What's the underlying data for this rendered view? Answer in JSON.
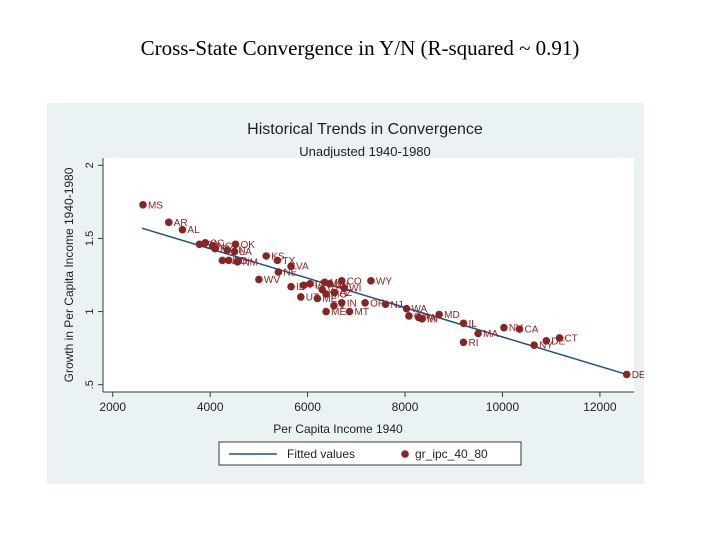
{
  "slide": {
    "title": "Cross-State Convergence in Y/N (R-squared ~ 0.91)"
  },
  "chart_data": {
    "type": "scatter",
    "title": "Historical Trends in Convergence",
    "subtitle": "Unadjusted 1940-1980",
    "xlabel": "Per Capita Income 1940",
    "ylabel": "Growth in Per Capita Income 1940-1980",
    "xlim": [
      1800,
      12700
    ],
    "ylim": [
      0.45,
      2.05
    ],
    "xticks": [
      2000,
      4000,
      6000,
      8000,
      10000,
      12000
    ],
    "yticks": [
      0.5,
      1,
      1.5,
      2
    ],
    "ytick_labels": [
      ".5",
      "1",
      "1.5",
      "2"
    ],
    "grid": false,
    "legend_position": "bottom",
    "legend": [
      {
        "label": "Fitted values",
        "kind": "line"
      },
      {
        "label": "gr_ipc_40_80",
        "kind": "marker"
      }
    ],
    "colors": {
      "marker": "#8b2323",
      "fit_line": "#1a4f8b",
      "plot_background": "#ffffff",
      "figure_background": "#eaf2f3",
      "title": "#1f1f1f"
    },
    "fitted_line": {
      "x": [
        2600,
        12550
      ],
      "y": [
        1.57,
        0.57
      ]
    },
    "points": [
      {
        "label": "MS",
        "x": 2620,
        "y": 1.73
      },
      {
        "label": "AR",
        "x": 3150,
        "y": 1.61
      },
      {
        "label": "AL",
        "x": 3430,
        "y": 1.56
      },
      {
        "label": "GA",
        "x": 3780,
        "y": 1.46
      },
      {
        "label": "SC",
        "x": 3900,
        "y": 1.47
      },
      {
        "label": "NC",
        "x": 4050,
        "y": 1.45
      },
      {
        "label": "KY",
        "x": 4100,
        "y": 1.43
      },
      {
        "label": "OK",
        "x": 4520,
        "y": 1.46
      },
      {
        "label": "TN",
        "x": 4350,
        "y": 1.42
      },
      {
        "label": "LA",
        "x": 4500,
        "y": 1.41
      },
      {
        "label": "ND",
        "x": 4250,
        "y": 1.35
      },
      {
        "label": "SD",
        "x": 4380,
        "y": 1.35
      },
      {
        "label": "NM",
        "x": 4560,
        "y": 1.34
      },
      {
        "label": "KS",
        "x": 5150,
        "y": 1.38
      },
      {
        "label": "TX",
        "x": 5380,
        "y": 1.35
      },
      {
        "label": "VA",
        "x": 5660,
        "y": 1.31
      },
      {
        "label": "NE",
        "x": 5400,
        "y": 1.27
      },
      {
        "label": "WV",
        "x": 5000,
        "y": 1.22
      },
      {
        "label": "ID",
        "x": 5660,
        "y": 1.17
      },
      {
        "label": "FL",
        "x": 5920,
        "y": 1.18
      },
      {
        "label": "IA",
        "x": 6050,
        "y": 1.19
      },
      {
        "label": "MN",
        "x": 6350,
        "y": 1.2
      },
      {
        "label": "NH",
        "x": 6450,
        "y": 1.19
      },
      {
        "label": "CO",
        "x": 6700,
        "y": 1.21
      },
      {
        "label": "WY",
        "x": 7300,
        "y": 1.21
      },
      {
        "label": "VT",
        "x": 6300,
        "y": 1.15
      },
      {
        "label": "WI",
        "x": 6750,
        "y": 1.16
      },
      {
        "label": "UT",
        "x": 5860,
        "y": 1.1
      },
      {
        "label": "MO",
        "x": 6380,
        "y": 1.12
      },
      {
        "label": "AZ",
        "x": 6550,
        "y": 1.13
      },
      {
        "label": "ME",
        "x": 6200,
        "y": 1.09
      },
      {
        "label": "IN",
        "x": 6700,
        "y": 1.06
      },
      {
        "label": "OR",
        "x": 7180,
        "y": 1.06
      },
      {
        "label": "NJ",
        "x": 7600,
        "y": 1.05
      },
      {
        "label": "ME",
        "x": 6380,
        "y": 1.0
      },
      {
        "label": "V",
        "x": 6540,
        "y": 1.04
      },
      {
        "label": "MT",
        "x": 6860,
        "y": 1.0
      },
      {
        "label": "WA",
        "x": 8030,
        "y": 1.02
      },
      {
        "label": "MD",
        "x": 8700,
        "y": 0.98
      },
      {
        "label": "OH",
        "x": 8080,
        "y": 0.97
      },
      {
        "label": "PA",
        "x": 8280,
        "y": 0.96
      },
      {
        "label": "MI",
        "x": 8350,
        "y": 0.95
      },
      {
        "label": "IL",
        "x": 9200,
        "y": 0.92
      },
      {
        "label": "MA",
        "x": 9500,
        "y": 0.85
      },
      {
        "label": "RI",
        "x": 9200,
        "y": 0.79
      },
      {
        "label": "NV",
        "x": 10030,
        "y": 0.89
      },
      {
        "label": "CA",
        "x": 10350,
        "y": 0.88
      },
      {
        "label": "NY",
        "x": 10650,
        "y": 0.77
      },
      {
        "label": "DE",
        "x": 10900,
        "y": 0.8
      },
      {
        "label": "CT",
        "x": 11170,
        "y": 0.82
      },
      {
        "label": "DE",
        "x": 12550,
        "y": 0.57
      }
    ]
  }
}
